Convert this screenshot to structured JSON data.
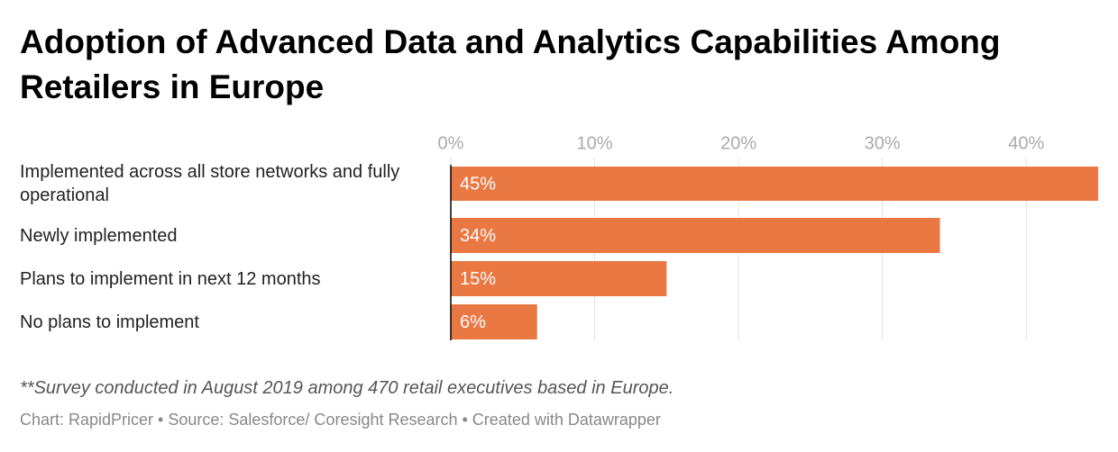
{
  "chart_data": {
    "type": "hbar",
    "title": "Adoption of Advanced Data and Analytics Capabilities Among Retailers in Europe",
    "categories": [
      "Implemented across all store networks and fully operational",
      "Newly implemented",
      "Plans to implement in next 12 months",
      "No plans to implement"
    ],
    "values": [
      45,
      34,
      15,
      6
    ],
    "value_labels": [
      "45%",
      "34%",
      "15%",
      "6%"
    ],
    "color": "#e97842",
    "xlim": [
      0,
      45
    ],
    "xticks": [
      {
        "value": 0,
        "label": "0%"
      },
      {
        "value": 10,
        "label": "10%"
      },
      {
        "value": 20,
        "label": "20%"
      },
      {
        "value": 30,
        "label": "30%"
      },
      {
        "value": 40,
        "label": "40%"
      }
    ],
    "grid": true,
    "note": "**Survey conducted in August 2019 among 470 retail executives based in Europe.",
    "footer": "Chart: RapidPricer • Source: Salesforce/ Coresight Research • Created with Datawrapper"
  }
}
